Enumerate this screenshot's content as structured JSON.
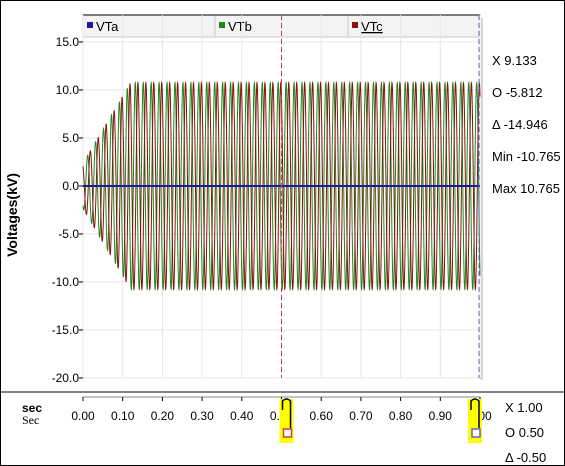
{
  "chart_data": {
    "type": "line",
    "ylabel": "Voltages(kV)",
    "xlabel": "sec",
    "x_unit_label": "Sec",
    "yticks": [
      "15.0",
      "10.0",
      "5.0",
      "0.0",
      "-5.0",
      "-10.0",
      "-15.0",
      "-20.0"
    ],
    "ylim": [
      -20,
      15
    ],
    "xticks": [
      "0.00",
      "0.10",
      "0.20",
      "0.30",
      "0.40",
      "0.50",
      "0.60",
      "0.70",
      "0.80",
      "0.90",
      "1.00"
    ],
    "xlim": [
      0.0,
      1.0
    ],
    "grid": true,
    "legend_position": "top",
    "series": [
      {
        "name": "VTa",
        "color": "#1a1aa0",
        "amplitude": 0.0,
        "phase_deg": 0
      },
      {
        "name": "VTb",
        "color": "#1a8a1a",
        "amplitude": 10.765,
        "phase_deg": -120
      },
      {
        "name": "VTc",
        "color": "#8b1010",
        "amplitude": 10.765,
        "phase_deg": 120
      }
    ],
    "frequency_hz": 50,
    "rise_time_sec": 0.12,
    "cursor_o_x": 0.5,
    "cursor_x_x": 1.0
  },
  "readout": {
    "x": "X 9.133",
    "o": "O -5.812",
    "delta": "Δ -14.946",
    "min": "Min -10.765",
    "max": "Max 10.765"
  },
  "time_readout": {
    "x": "X 1.00",
    "o": "O 0.50",
    "delta": "Δ -0.50"
  },
  "colors": {
    "cursor_o": "#d04040",
    "cursor_x": "#6060d0",
    "marker_bg": "#ffff00",
    "grid": "#e6e6e6"
  }
}
